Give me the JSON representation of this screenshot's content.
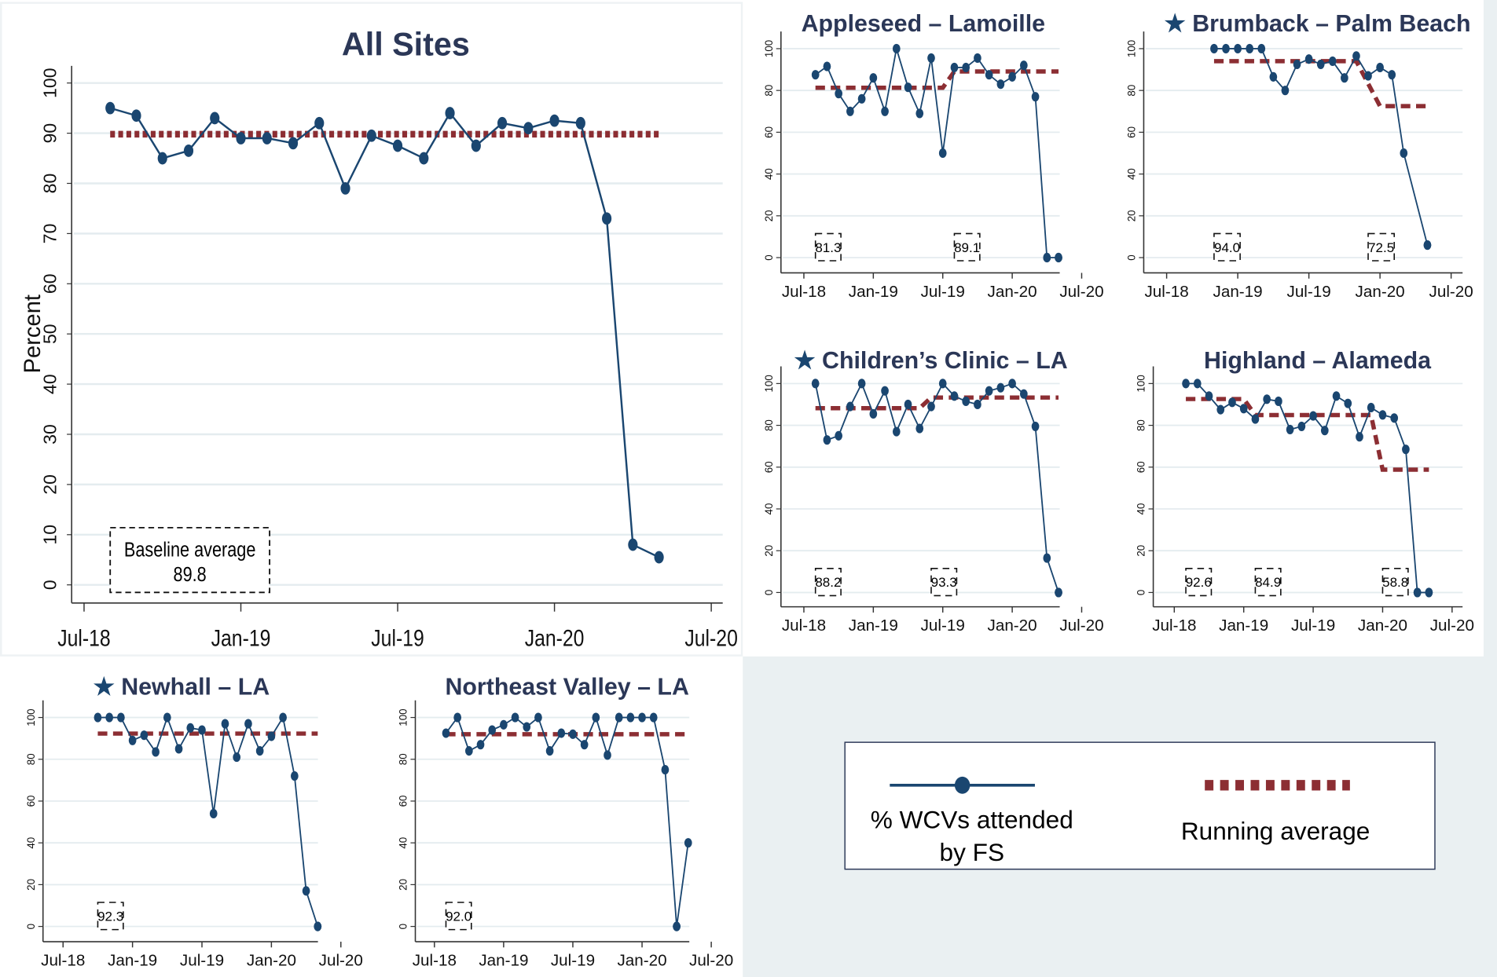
{
  "colors": {
    "series": "#1a4670",
    "running_avg": "#8c2e33",
    "title": "#2b3757",
    "panel_bg": "#eaf0f2",
    "grid": "#e4ecef"
  },
  "legend": {
    "series_label_line1": "% WCVs attended",
    "series_label_line2": "by FS",
    "running_avg_label": "Running average"
  },
  "chart_data": [
    {
      "type": "line",
      "title": "All Sites",
      "starred": false,
      "ylabel": "Percent",
      "ylim": [
        0,
        100
      ],
      "yticks": [
        0,
        10,
        20,
        30,
        40,
        50,
        60,
        70,
        80,
        90,
        100
      ],
      "xticks": [
        "Jul-18",
        "Jan-19",
        "Jul-19",
        "Jan-20",
        "Jul-20"
      ],
      "x_start": "2018-08",
      "values": [
        95,
        93.5,
        85,
        86.5,
        93,
        89,
        89,
        88,
        92,
        79,
        89.5,
        87.5,
        85,
        94,
        87.5,
        92,
        91,
        92.5,
        92,
        73,
        8,
        5.5
      ],
      "running_avg": [
        {
          "from": "2018-08",
          "to": "2020-05",
          "value": 89.8
        }
      ],
      "annotations": [
        {
          "line1": "Baseline average",
          "line2": "89.8",
          "at": "2018-08"
        }
      ]
    },
    {
      "type": "line",
      "title": "Appleseed – Lamoille",
      "starred": false,
      "ylim": [
        0,
        100
      ],
      "yticks": [
        0,
        20,
        40,
        60,
        80,
        100
      ],
      "xticks": [
        "Jul-18",
        "Jan-19",
        "Jul-19",
        "Jan-20",
        "Jul-20"
      ],
      "x_start": "2018-08",
      "values": [
        87.5,
        91.5,
        78.5,
        70,
        76,
        86,
        70,
        100,
        81.5,
        69,
        95.5,
        50,
        91,
        91,
        95.5,
        87.5,
        83,
        86.5,
        92,
        77,
        0,
        0
      ],
      "running_avg": [
        {
          "from": "2018-08",
          "to": "2019-07",
          "value": 81.3
        },
        {
          "from": "2019-08",
          "to": "2020-05",
          "value": 89.1
        }
      ],
      "annotations": [
        {
          "line2": "81.3",
          "at": "2018-08"
        },
        {
          "line2": "89.1",
          "at": "2019-08"
        }
      ]
    },
    {
      "type": "line",
      "title": "Brumback – Palm Beach",
      "starred": true,
      "ylim": [
        0,
        100
      ],
      "yticks": [
        0,
        20,
        40,
        60,
        80,
        100
      ],
      "xticks": [
        "Jul-18",
        "Jan-19",
        "Jul-19",
        "Jan-20",
        "Jul-20"
      ],
      "x_start": "2018-11",
      "values": [
        100,
        100,
        100,
        100,
        100,
        86.5,
        80,
        92.5,
        95,
        92.5,
        94,
        86,
        96.5,
        87,
        91,
        87.5,
        50,
        null,
        6
      ],
      "running_avg": [
        {
          "from": "2018-11",
          "to": "2019-11",
          "value": 94.0
        },
        {
          "from": "2020-01",
          "to": "2020-05",
          "value": 72.5
        }
      ],
      "annotations": [
        {
          "line2": "94.0",
          "at": "2018-11"
        },
        {
          "line2": "72.5",
          "at": "2019-12"
        }
      ]
    },
    {
      "type": "line",
      "title": "Children’s Clinic – LA",
      "starred": true,
      "ylim": [
        0,
        100
      ],
      "yticks": [
        0,
        20,
        40,
        60,
        80,
        100
      ],
      "xticks": [
        "Jul-18",
        "Jan-19",
        "Jul-19",
        "Jan-20",
        "Jul-20"
      ],
      "x_start": "2018-08",
      "values": [
        100,
        73,
        75,
        89,
        100,
        85.5,
        96.5,
        77,
        90,
        78.5,
        89,
        100,
        94,
        91.5,
        90,
        96.5,
        98,
        100,
        95,
        79.5,
        16.5,
        0
      ],
      "running_avg": [
        {
          "from": "2018-08",
          "to": "2019-05",
          "value": 88.2
        },
        {
          "from": "2019-06",
          "to": "2020-05",
          "value": 93.3
        }
      ],
      "annotations": [
        {
          "line2": "88.2",
          "at": "2018-08"
        },
        {
          "line2": "93.3",
          "at": "2019-06"
        }
      ]
    },
    {
      "type": "line",
      "title": "Highland – Alameda",
      "starred": false,
      "ylim": [
        0,
        100
      ],
      "yticks": [
        0,
        20,
        40,
        60,
        80,
        100
      ],
      "xticks": [
        "Jul-18",
        "Jan-19",
        "Jul-19",
        "Jan-20",
        "Jul-20"
      ],
      "x_start": "2018-08",
      "values": [
        100,
        100,
        94,
        87.5,
        91,
        88,
        83,
        92.5,
        91.5,
        78,
        79.5,
        84.5,
        77.5,
        94,
        90.5,
        74.5,
        88.5,
        85,
        83.5,
        68.5,
        0,
        0
      ],
      "running_avg": [
        {
          "from": "2018-08",
          "to": "2019-01",
          "value": 92.6
        },
        {
          "from": "2019-02",
          "to": "2019-12",
          "value": 84.9
        },
        {
          "from": "2020-01",
          "to": "2020-05",
          "value": 58.8
        }
      ],
      "annotations": [
        {
          "line2": "92.6",
          "at": "2018-08"
        },
        {
          "line2": "84.9",
          "at": "2019-02"
        },
        {
          "line2": "58.8",
          "at": "2020-01"
        }
      ]
    },
    {
      "type": "line",
      "title": "Newhall – LA",
      "starred": true,
      "ylim": [
        0,
        100
      ],
      "yticks": [
        0,
        20,
        40,
        60,
        80,
        100
      ],
      "xticks": [
        "Jul-18",
        "Jan-19",
        "Jul-19",
        "Jan-20",
        "Jul-20"
      ],
      "x_start": "2018-10",
      "values": [
        100,
        100,
        100,
        89,
        91.5,
        83.5,
        100,
        85,
        95,
        94,
        54,
        97,
        81,
        97,
        84,
        91,
        100,
        72,
        17,
        0
      ],
      "running_avg": [
        {
          "from": "2018-10",
          "to": "2020-05",
          "value": 92.3
        }
      ],
      "annotations": [
        {
          "line2": "92.3",
          "at": "2018-10"
        }
      ]
    },
    {
      "type": "line",
      "title": "Northeast Valley – LA",
      "starred": false,
      "ylim": [
        0,
        100
      ],
      "yticks": [
        0,
        20,
        40,
        60,
        80,
        100
      ],
      "xticks": [
        "Jul-18",
        "Jan-19",
        "Jul-19",
        "Jan-20",
        "Jul-20"
      ],
      "x_start": "2018-08",
      "values": [
        92.5,
        100,
        84,
        87,
        94,
        96.5,
        100,
        95.5,
        100,
        84,
        92.5,
        92,
        87,
        100,
        82,
        100,
        100,
        100,
        100,
        75,
        0,
        40
      ],
      "running_avg": [
        {
          "from": "2018-08",
          "to": "2020-05",
          "value": 92.0
        }
      ],
      "annotations": [
        {
          "line2": "92.0",
          "at": "2018-08"
        }
      ]
    }
  ]
}
